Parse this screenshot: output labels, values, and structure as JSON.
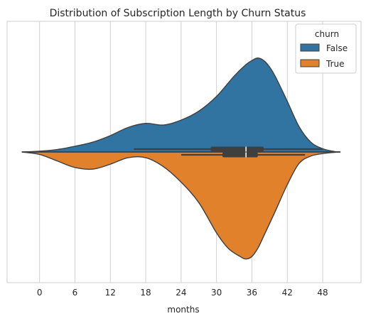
{
  "chart_data": {
    "type": "violin",
    "title": "Distribution of Subscription Length by Churn Status",
    "xlabel": "months",
    "ylabel": "",
    "xlim": [
      -5.5,
      54.5
    ],
    "xticks": [
      0,
      6,
      12,
      18,
      24,
      30,
      36,
      42,
      48
    ],
    "grid": "vertical",
    "split": true,
    "legend": {
      "title": "churn",
      "placement": "top-right",
      "entries": [
        {
          "label": "False",
          "color": "#3274a1"
        },
        {
          "label": "True",
          "color": "#e1812c"
        }
      ]
    },
    "series": [
      {
        "name": "False",
        "color": "#3274a1",
        "side": "top",
        "density_x": [
          -3,
          0,
          3,
          6,
          9,
          12,
          15,
          18,
          21,
          24,
          27,
          30,
          33,
          35,
          36,
          37,
          38,
          39,
          40,
          42,
          44,
          46,
          48,
          50,
          51
        ],
        "density_y": [
          0.0,
          0.01,
          0.03,
          0.07,
          0.12,
          0.2,
          0.3,
          0.35,
          0.33,
          0.39,
          0.5,
          0.68,
          0.93,
          1.07,
          1.12,
          1.15,
          1.12,
          1.04,
          0.92,
          0.62,
          0.31,
          0.12,
          0.04,
          0.005,
          0.0
        ],
        "whisker": [
          16,
          48
        ],
        "quartiles": [
          29,
          38
        ],
        "median": 35
      },
      {
        "name": "True",
        "color": "#e1812c",
        "side": "bottom",
        "density_x": [
          -3,
          0,
          3,
          6,
          9,
          12,
          15,
          18,
          21,
          24,
          27,
          30,
          32,
          34,
          35,
          36,
          37,
          38,
          40,
          42,
          44,
          46,
          48,
          50,
          51
        ],
        "density_y": [
          0.0,
          0.03,
          0.11,
          0.19,
          0.21,
          0.15,
          0.07,
          0.07,
          0.18,
          0.37,
          0.62,
          0.99,
          1.18,
          1.28,
          1.31,
          1.28,
          1.18,
          1.03,
          0.72,
          0.4,
          0.14,
          0.05,
          0.02,
          0.005,
          0.0
        ],
        "whisker": [
          24,
          45
        ],
        "quartiles": [
          31,
          37
        ],
        "median": 35
      }
    ]
  }
}
